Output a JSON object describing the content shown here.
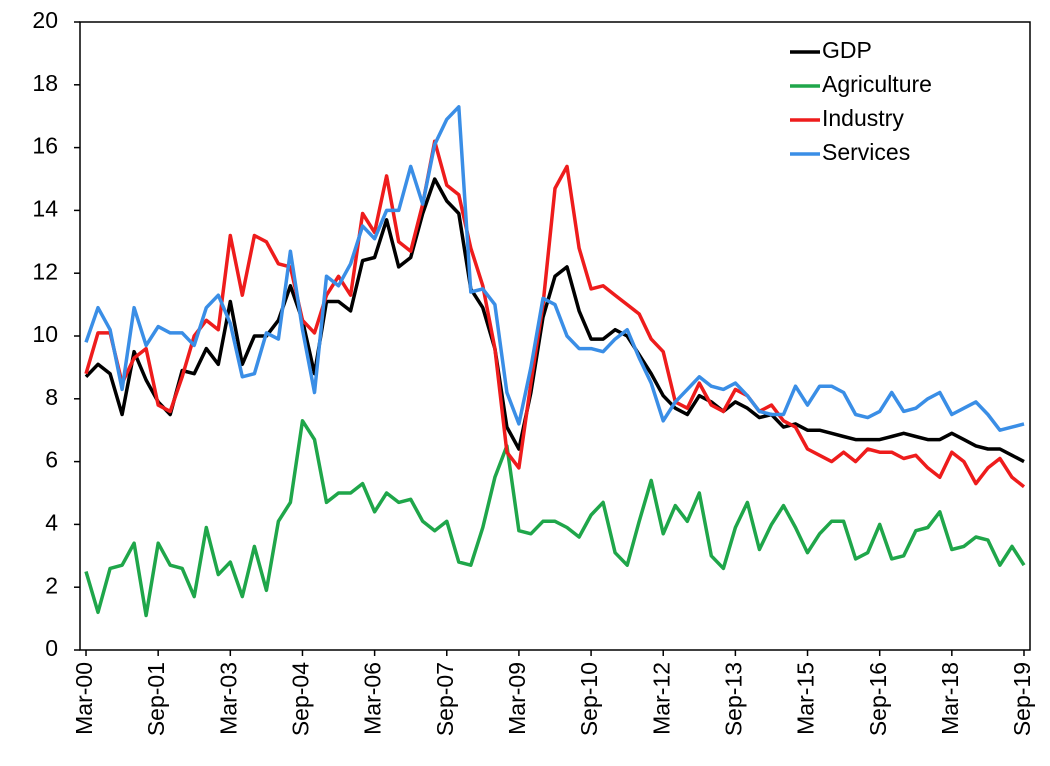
{
  "chart_data": {
    "type": "line",
    "categories": [
      "Mar-00",
      null,
      null,
      null,
      null,
      null,
      "Sep-01",
      null,
      null,
      null,
      null,
      null,
      "Mar-03",
      null,
      null,
      null,
      null,
      null,
      "Sep-04",
      null,
      null,
      null,
      null,
      null,
      "Mar-06",
      null,
      null,
      null,
      null,
      null,
      "Sep-07",
      null,
      null,
      null,
      null,
      null,
      "Mar-09",
      null,
      null,
      null,
      null,
      null,
      "Sep-10",
      null,
      null,
      null,
      null,
      null,
      "Mar-12",
      null,
      null,
      null,
      null,
      null,
      "Sep-13",
      null,
      null,
      null,
      null,
      null,
      "Mar-15",
      null,
      null,
      null,
      null,
      null,
      "Sep-16",
      null,
      null,
      null,
      null,
      null,
      "Mar-18",
      null,
      null,
      null,
      null,
      null,
      "Sep-19"
    ],
    "series": [
      {
        "name": "GDP",
        "color": "#000000",
        "values": [
          8.7,
          9.1,
          8.8,
          7.5,
          9.5,
          8.6,
          7.9,
          7.5,
          8.9,
          8.8,
          9.6,
          9.1,
          11.1,
          9.1,
          10.0,
          10.0,
          10.5,
          11.6,
          10.5,
          8.8,
          11.1,
          11.1,
          10.8,
          12.4,
          12.5,
          13.7,
          12.2,
          12.5,
          13.9,
          15.0,
          14.3,
          13.9,
          11.5,
          10.9,
          9.6,
          7.1,
          6.4,
          8.2,
          10.6,
          11.9,
          12.2,
          10.8,
          9.9,
          9.9,
          10.2,
          10.0,
          9.4,
          8.8,
          8.1,
          7.7,
          7.5,
          8.1,
          7.9,
          7.6,
          7.9,
          7.7,
          7.4,
          7.5,
          7.1,
          7.2,
          7.0,
          7.0,
          6.9,
          6.8,
          6.7,
          6.7,
          6.7,
          6.8,
          6.9,
          6.8,
          6.7,
          6.7,
          6.9,
          6.7,
          6.5,
          6.4,
          6.4,
          6.2,
          6.0
        ]
      },
      {
        "name": "Agriculture",
        "color": "#1fa64a",
        "values": [
          2.5,
          1.2,
          2.6,
          2.7,
          3.4,
          1.1,
          3.4,
          2.7,
          2.6,
          1.7,
          3.9,
          2.4,
          2.8,
          1.7,
          3.3,
          1.9,
          4.1,
          4.7,
          7.3,
          6.7,
          4.7,
          5.0,
          5.0,
          5.3,
          4.4,
          5.0,
          4.7,
          4.8,
          4.1,
          3.8,
          4.1,
          2.8,
          2.7,
          3.9,
          5.5,
          6.5,
          3.8,
          3.7,
          4.1,
          4.1,
          3.9,
          3.6,
          4.3,
          4.7,
          3.1,
          2.7,
          4.1,
          5.4,
          3.7,
          4.6,
          4.1,
          5.0,
          3.0,
          2.6,
          3.9,
          4.7,
          3.2,
          4.0,
          4.6,
          3.9,
          3.1,
          3.7,
          4.1,
          4.1,
          2.9,
          3.1,
          4.0,
          2.9,
          3.0,
          3.8,
          3.9,
          4.4,
          3.2,
          3.3,
          3.6,
          3.5,
          2.7,
          3.3,
          2.7
        ]
      },
      {
        "name": "Industry",
        "color": "#ee1c1c",
        "values": [
          8.8,
          10.1,
          10.1,
          8.5,
          9.3,
          9.6,
          7.8,
          7.6,
          8.7,
          10.0,
          10.5,
          10.2,
          13.2,
          11.3,
          13.2,
          13.0,
          12.3,
          12.2,
          10.5,
          10.1,
          11.3,
          11.9,
          11.3,
          13.9,
          13.3,
          15.1,
          13.0,
          12.7,
          14.2,
          16.2,
          14.8,
          14.5,
          12.8,
          11.6,
          9.6,
          6.3,
          5.8,
          8.5,
          11.0,
          14.7,
          15.4,
          12.8,
          11.5,
          11.6,
          11.3,
          11.0,
          10.7,
          9.9,
          9.5,
          7.9,
          7.7,
          8.5,
          7.8,
          7.6,
          8.3,
          8.1,
          7.6,
          7.8,
          7.3,
          7.1,
          6.4,
          6.2,
          6.0,
          6.3,
          6.0,
          6.4,
          6.3,
          6.3,
          6.1,
          6.2,
          5.8,
          5.5,
          6.3,
          6.0,
          5.3,
          5.8,
          6.1,
          5.5,
          5.2
        ]
      },
      {
        "name": "Services",
        "color": "#3a8ee6",
        "values": [
          9.8,
          10.9,
          10.2,
          8.3,
          10.9,
          9.7,
          10.3,
          10.1,
          10.1,
          9.7,
          10.9,
          11.3,
          10.4,
          8.7,
          8.8,
          10.1,
          9.9,
          12.7,
          10.2,
          8.2,
          11.9,
          11.6,
          12.3,
          13.5,
          13.1,
          14.0,
          14.0,
          15.4,
          14.2,
          16.1,
          16.9,
          17.3,
          11.4,
          11.5,
          11.0,
          8.2,
          7.2,
          9.0,
          11.2,
          11.0,
          10.0,
          9.6,
          9.6,
          9.5,
          9.9,
          10.2,
          9.3,
          8.5,
          7.3,
          7.9,
          8.3,
          8.7,
          8.4,
          8.3,
          8.5,
          8.1,
          7.6,
          7.5,
          7.5,
          8.4,
          7.8,
          8.4,
          8.4,
          8.2,
          7.5,
          7.4,
          7.6,
          8.2,
          7.6,
          7.7,
          8.0,
          8.2,
          7.5,
          7.7,
          7.9,
          7.5,
          7.0,
          7.1,
          7.2
        ]
      }
    ],
    "ylim": [
      0,
      20
    ],
    "yticks": [
      0,
      2,
      4,
      6,
      8,
      10,
      12,
      14,
      16,
      18,
      20
    ],
    "grid": false,
    "legend": "upper right"
  }
}
